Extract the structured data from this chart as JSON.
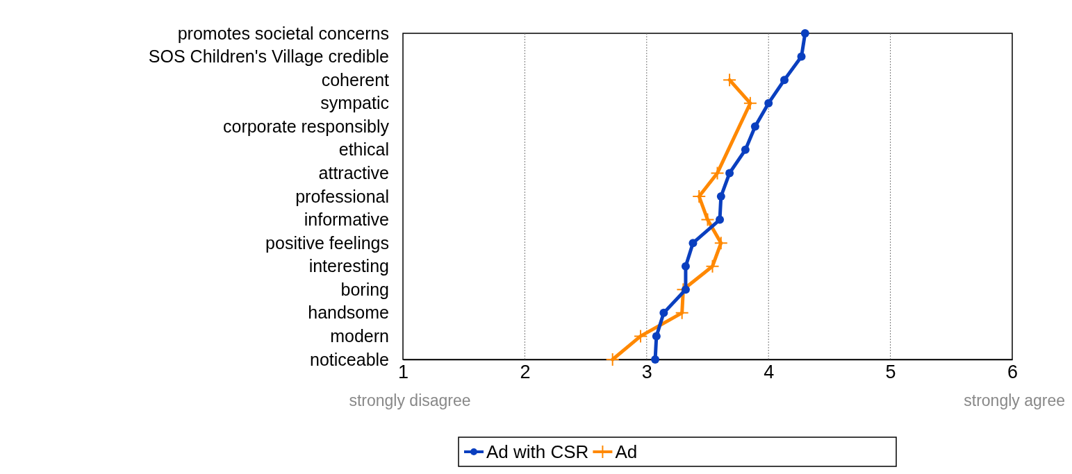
{
  "chart_data": {
    "type": "line",
    "orientation": "horizontal",
    "categories": [
      "promotes societal concerns",
      "SOS Children's Village credible",
      "coherent",
      "sympatic",
      "corporate responsibly",
      "ethical",
      "attractive",
      "professional",
      "informative",
      "positive feelings",
      "interesting",
      "boring",
      "handsome",
      "modern",
      "noticeable"
    ],
    "series": [
      {
        "name": "Ad with CSR",
        "color": "#0a3fbf",
        "marker": "circle",
        "values": [
          4.3,
          4.27,
          4.13,
          4.0,
          3.89,
          3.81,
          3.68,
          3.61,
          3.6,
          3.38,
          3.32,
          3.32,
          3.14,
          3.08,
          3.07
        ]
      },
      {
        "name": "Ad",
        "color": "#ff8800",
        "marker": "cross",
        "values": [
          null,
          null,
          3.68,
          3.85,
          null,
          null,
          3.58,
          3.43,
          3.5,
          3.61,
          3.54,
          3.3,
          3.29,
          2.95,
          2.72
        ]
      }
    ],
    "xlim": [
      1,
      6
    ],
    "xticks": [
      1,
      2,
      3,
      4,
      5,
      6
    ],
    "grid": "x",
    "legend": "bottom",
    "annotations": [
      "strongly disagree",
      "strongly agree"
    ]
  }
}
